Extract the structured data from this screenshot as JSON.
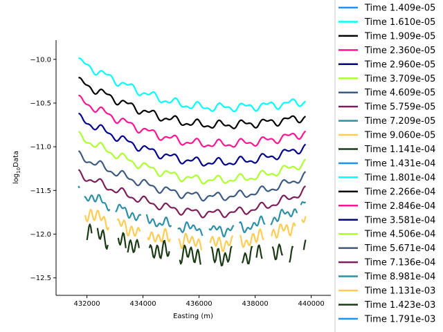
{
  "chart_data": {
    "type": "line",
    "title": "",
    "xlabel": "Easting (m)",
    "ylabel": "log",
    "ylabel_sub": "10",
    "ylabel_suffix": "Data",
    "xlim": [
      430900,
      440700
    ],
    "ylim": [
      -12.7,
      -9.78
    ],
    "xticks": [
      432000,
      434000,
      436000,
      438000,
      440000
    ],
    "yticks": [
      -10.0,
      -10.5,
      -11.0,
      -11.5,
      -12.0,
      -12.5
    ],
    "ytick_labels": [
      "−10.0",
      "−10.5",
      "−11.0",
      "−11.5",
      "−12.0",
      "−12.5"
    ],
    "grid": false,
    "legend_placement": "outside-right",
    "x_start": 431700,
    "x_end": 439800,
    "series": [
      {
        "name": "Time 1.409e-05",
        "color": "#1e90ff",
        "y_start": -9.9,
        "y_mid": -10.4,
        "y_end": -10.35,
        "gap_level": 0,
        "visible": false
      },
      {
        "name": "Time 1.610e-05",
        "color": "#00ffff",
        "y_start": -10.02,
        "y_mid": -10.55,
        "y_end": -10.48,
        "gap_level": 0
      },
      {
        "name": "Time 1.909e-05",
        "color": "#000000",
        "y_start": -10.25,
        "y_mid": -10.75,
        "y_end": -10.66,
        "gap_level": 0
      },
      {
        "name": "Time 2.360e-05",
        "color": "#ff1493",
        "y_start": -10.46,
        "y_mid": -10.97,
        "y_end": -10.84,
        "gap_level": 0
      },
      {
        "name": "Time 2.960e-05",
        "color": "#00008b",
        "y_start": -10.67,
        "y_mid": -11.18,
        "y_end": -11.0,
        "gap_level": 0
      },
      {
        "name": "Time 3.709e-05",
        "color": "#adff2f",
        "y_start": -10.88,
        "y_mid": -11.38,
        "y_end": -11.18,
        "gap_level": 0
      },
      {
        "name": "Time 4.609e-05",
        "color": "#3d5a80",
        "y_start": -11.1,
        "y_mid": -11.57,
        "y_end": -11.33,
        "gap_level": 0
      },
      {
        "name": "Time 5.759e-05",
        "color": "#7b1e5a",
        "y_start": -11.31,
        "y_mid": -11.76,
        "y_end": -11.5,
        "gap_level": 0
      },
      {
        "name": "Time 7.209e-05",
        "color": "#2e8fa8",
        "y_start": -11.52,
        "y_mid": -11.95,
        "y_end": -11.66,
        "gap_level": 1
      },
      {
        "name": "Time 9.060e-05",
        "color": "#ffcc55",
        "y_start": -11.73,
        "y_mid": -12.1,
        "y_end": -11.85,
        "gap_level": 2
      },
      {
        "name": "Time 1.141e-04",
        "color": "#1a3a14",
        "y_start": -11.94,
        "y_mid": -12.25,
        "y_end": -12.18,
        "gap_level": 3
      },
      {
        "name": "Time 1.431e-04",
        "color": "#1e90ff"
      },
      {
        "name": "Time 1.801e-04",
        "color": "#00ffff"
      },
      {
        "name": "Time 2.266e-04",
        "color": "#000000"
      },
      {
        "name": "Time 2.846e-04",
        "color": "#ff1493"
      },
      {
        "name": "Time 3.581e-04",
        "color": "#00008b"
      },
      {
        "name": "Time 4.506e-04",
        "color": "#adff2f"
      },
      {
        "name": "Time 5.671e-04",
        "color": "#3d5a80"
      },
      {
        "name": "Time 7.136e-04",
        "color": "#7b1e5a"
      },
      {
        "name": "Time 8.981e-04",
        "color": "#2e8fa8"
      },
      {
        "name": "Time 1.131e-03",
        "color": "#ffcc55"
      },
      {
        "name": "Time 1.423e-03",
        "color": "#1a3a14"
      },
      {
        "name": "Time 1.791e-03",
        "color": "#1e90ff"
      }
    ]
  }
}
